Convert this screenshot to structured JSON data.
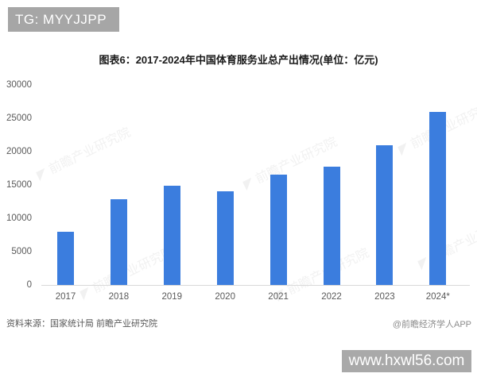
{
  "badges": {
    "top_left": "TG: MYYJJPP",
    "bottom_right": "www.hxwl56.com"
  },
  "chart_data": {
    "type": "bar",
    "title": "图表6：2017-2024年中国体育服务业总产出情况(单位：亿元)",
    "categories": [
      "2017",
      "2018",
      "2019",
      "2020",
      "2021",
      "2022",
      "2023",
      "2024*"
    ],
    "values": [
      8000,
      12800,
      14900,
      14100,
      16500,
      17700,
      21000,
      26000
    ],
    "unit": "亿元",
    "ylim": [
      0,
      30000
    ],
    "yticks": [
      0,
      5000,
      10000,
      15000,
      20000,
      25000,
      30000
    ],
    "grid": "off",
    "legend": "none",
    "bar_color": "#3b7dde"
  },
  "watermark": {
    "logo_icon": "watermark-logo-icon",
    "text": "前瞻产业研究院"
  },
  "footer": {
    "source": "资料来源：国家统计局 前瞻产业研究院",
    "credit": "@前瞻经济学人APP"
  },
  "colors": {
    "bar": "#3b7dde",
    "badge_bg": "#a6a6a6",
    "axis_line": "#d9d9d9",
    "axis_text": "#595959"
  }
}
